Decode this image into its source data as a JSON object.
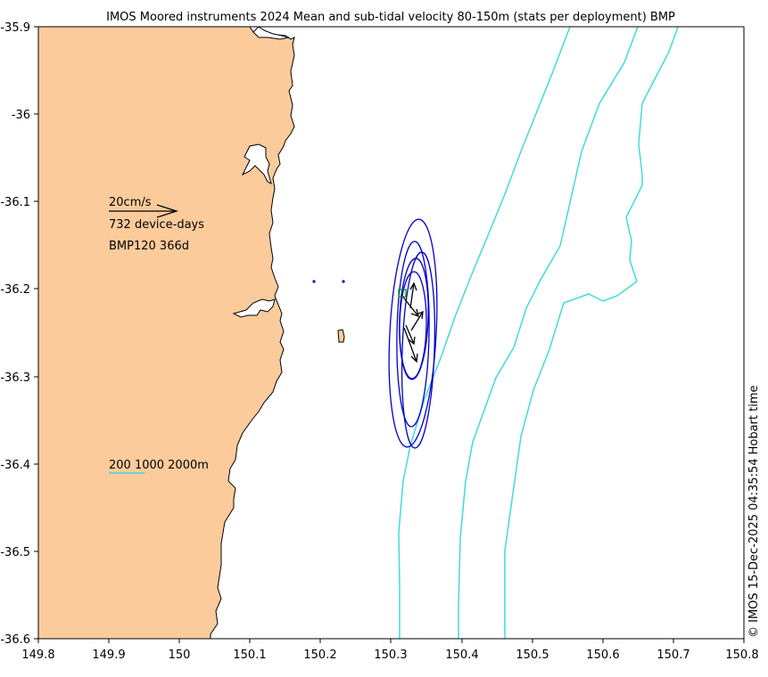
{
  "title": "IMOS Moored instruments 2024 Mean and sub-tidal velocity 80-150m (stats per deployment) BMP",
  "axes": {
    "x_ticks": [
      "149.8",
      "149.9",
      "150",
      "150.1",
      "150.2",
      "150.3",
      "150.4",
      "150.5",
      "150.6",
      "150.7",
      "150.8"
    ],
    "y_ticks": [
      "-35.9",
      "-36",
      "-36.1",
      "-36.2",
      "-36.3",
      "-36.4",
      "-36.5",
      "-36.6"
    ],
    "xlim": [
      149.8,
      150.8
    ],
    "ylim": [
      -36.6,
      -35.9
    ]
  },
  "legend": {
    "scale_label": "20cm/s",
    "device_days": "732 device-days",
    "station_label": "BMP120 366d",
    "isobath_label": "200 1000 2000m"
  },
  "stamp": "© IMOS 15-Dec-2025 04:35:54 Hobart time",
  "colors": {
    "land": "#fbcb9b",
    "coastline": "#000000",
    "isobath": "#3fdcdc",
    "ellipse": "#0000c8",
    "arrow": "#000000",
    "station_marker": "#00a000"
  },
  "chart_data": {
    "type": "map",
    "stations": [
      {
        "lon": 150.313,
        "lat": -36.207
      },
      {
        "lon": 150.189,
        "lat": -36.193
      },
      {
        "lon": 150.233,
        "lat": -36.193
      }
    ],
    "velocity_vectors": [
      {
        "lon": 150.315,
        "lat": -36.21,
        "u_cm_s": 3.3,
        "v_cm_s": -6.2
      },
      {
        "lon": 150.32,
        "lat": -36.24,
        "u_cm_s": 2.3,
        "v_cm_s": -4.2
      },
      {
        "lon": 150.32,
        "lat": -36.27,
        "u_cm_s": 4.6,
        "v_cm_s": -6.9
      },
      {
        "lon": 150.325,
        "lat": -36.25,
        "u_cm_s": 3.0,
        "v_cm_s": 3.8
      },
      {
        "lon": 150.325,
        "lat": -36.25,
        "u_cm_s": 4.6,
        "v_cm_s": 3.1
      }
    ]
  }
}
